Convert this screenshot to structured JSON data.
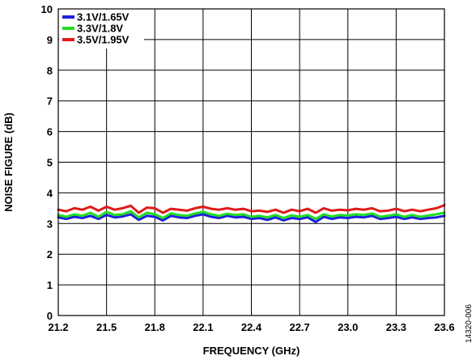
{
  "figure_id": "14320-006",
  "chart_data": {
    "type": "line",
    "xlabel": "FREQUENCY (GHz)",
    "ylabel": "NOISE FIGURE (dB)",
    "xlim": [
      21.2,
      23.6
    ],
    "ylim": [
      0,
      10
    ],
    "x_ticks": [
      "21.2",
      "21.5",
      "21.8",
      "22.1",
      "22.4",
      "22.7",
      "23.0",
      "23.3",
      "23.6"
    ],
    "y_ticks": [
      "0",
      "1",
      "2",
      "3",
      "4",
      "5",
      "6",
      "7",
      "8",
      "9",
      "10"
    ],
    "grid": true,
    "legend_position": "top-left",
    "x": [
      21.2,
      21.25,
      21.3,
      21.35,
      21.4,
      21.45,
      21.5,
      21.55,
      21.6,
      21.65,
      21.7,
      21.75,
      21.8,
      21.85,
      21.9,
      21.95,
      22.0,
      22.05,
      22.1,
      22.15,
      22.2,
      22.25,
      22.3,
      22.35,
      22.4,
      22.45,
      22.5,
      22.55,
      22.6,
      22.65,
      22.7,
      22.75,
      22.8,
      22.85,
      22.9,
      22.95,
      23.0,
      23.05,
      23.1,
      23.15,
      23.2,
      23.25,
      23.3,
      23.35,
      23.4,
      23.45,
      23.5,
      23.55,
      23.6
    ],
    "series": [
      {
        "name": "3.1V/1.65V",
        "color": "#1f1fe0",
        "values": [
          3.2,
          3.15,
          3.22,
          3.18,
          3.25,
          3.15,
          3.28,
          3.2,
          3.23,
          3.3,
          3.12,
          3.25,
          3.22,
          3.1,
          3.25,
          3.2,
          3.18,
          3.25,
          3.3,
          3.22,
          3.18,
          3.25,
          3.2,
          3.22,
          3.15,
          3.18,
          3.12,
          3.2,
          3.1,
          3.18,
          3.15,
          3.2,
          3.05,
          3.22,
          3.15,
          3.2,
          3.18,
          3.22,
          3.2,
          3.25,
          3.15,
          3.18,
          3.22,
          3.15,
          3.2,
          3.15,
          3.18,
          3.2,
          3.25
        ]
      },
      {
        "name": "3.3V/1.8V",
        "color": "#22dd22",
        "values": [
          3.28,
          3.22,
          3.3,
          3.25,
          3.35,
          3.22,
          3.38,
          3.28,
          3.3,
          3.4,
          3.2,
          3.35,
          3.3,
          3.18,
          3.33,
          3.28,
          3.25,
          3.33,
          3.38,
          3.3,
          3.25,
          3.32,
          3.28,
          3.3,
          3.22,
          3.25,
          3.2,
          3.28,
          3.18,
          3.27,
          3.22,
          3.28,
          3.15,
          3.3,
          3.23,
          3.28,
          3.26,
          3.3,
          3.28,
          3.33,
          3.22,
          3.25,
          3.3,
          3.22,
          3.28,
          3.22,
          3.26,
          3.3,
          3.35
        ]
      },
      {
        "name": "3.5V/1.95V",
        "color": "#e01a1a",
        "values": [
          3.45,
          3.4,
          3.5,
          3.45,
          3.55,
          3.42,
          3.55,
          3.45,
          3.5,
          3.58,
          3.35,
          3.52,
          3.5,
          3.35,
          3.48,
          3.45,
          3.42,
          3.5,
          3.55,
          3.48,
          3.45,
          3.5,
          3.45,
          3.48,
          3.4,
          3.42,
          3.38,
          3.45,
          3.35,
          3.45,
          3.4,
          3.48,
          3.35,
          3.5,
          3.42,
          3.45,
          3.43,
          3.48,
          3.45,
          3.5,
          3.4,
          3.42,
          3.48,
          3.4,
          3.45,
          3.4,
          3.45,
          3.5,
          3.6
        ]
      }
    ]
  }
}
